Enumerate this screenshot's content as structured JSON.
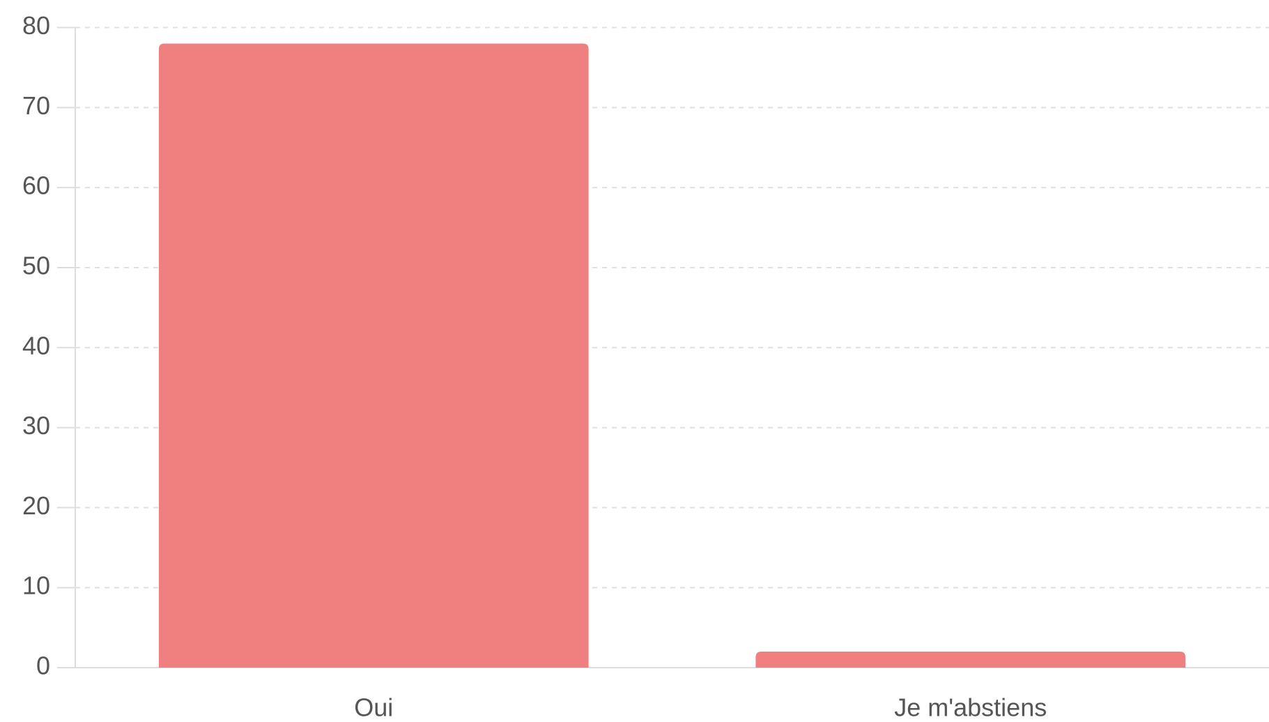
{
  "chart_data": {
    "type": "bar",
    "categories": [
      "Oui",
      "Je m'abstiens"
    ],
    "values": [
      78,
      2
    ],
    "color": "#f08080",
    "ylim": [
      0,
      80
    ],
    "yticks": [
      0,
      10,
      20,
      30,
      40,
      50,
      60,
      70,
      80
    ],
    "grid": true
  }
}
